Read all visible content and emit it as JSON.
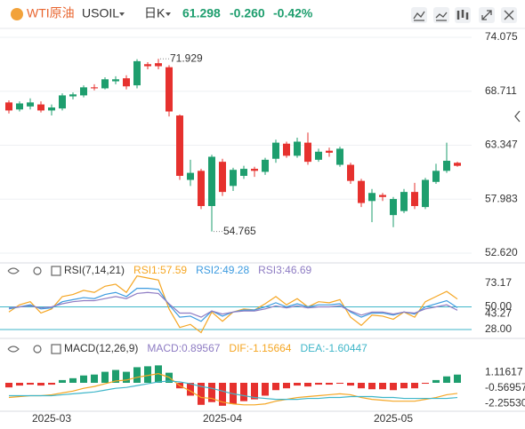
{
  "header": {
    "symbol": "WTI原油",
    "code": "USOIL",
    "period": "日K",
    "price": "61.298",
    "change": "-0.260",
    "change_pct": "-0.42%"
  },
  "chart_data": [
    {
      "type": "candlestick",
      "up_color": "#1e9e6e",
      "down_color": "#e6312e",
      "open": [
        67.6,
        66.9,
        67.2,
        67.4,
        66.8,
        67.0,
        68.2,
        68.3,
        69.1,
        69.0,
        69.7,
        70.0,
        69.3,
        71.4,
        71.5,
        71.1,
        66.3,
        59.9,
        60.8,
        57.3,
        61.7,
        59.3,
        60.3,
        61.0,
        60.7,
        62.0,
        63.5,
        62.3,
        63.6,
        61.9,
        62.8,
        61.4,
        61.4,
        59.8,
        57.8,
        58.4,
        56.4,
        56.8,
        58.7,
        57.2,
        59.7,
        60.8,
        61.6
      ],
      "high": [
        67.8,
        67.7,
        68.0,
        67.7,
        67.4,
        68.5,
        68.6,
        69.3,
        69.4,
        70.1,
        70.2,
        70.3,
        71.9,
        71.6,
        71.929,
        71.3,
        66.4,
        61.9,
        61.0,
        62.4,
        62.0,
        61.1,
        61.3,
        61.2,
        62.1,
        63.9,
        63.7,
        64.1,
        64.6,
        63.0,
        63.1,
        63.2,
        61.6,
        60.0,
        59.0,
        58.6,
        58.2,
        59.0,
        59.6,
        60.1,
        61.5,
        63.6,
        61.7
      ],
      "low": [
        66.5,
        66.7,
        66.9,
        66.6,
        66.3,
        66.8,
        67.9,
        68.1,
        68.8,
        68.9,
        69.4,
        68.9,
        69.0,
        70.9,
        70.9,
        66.2,
        59.9,
        59.3,
        57.0,
        54.765,
        58.3,
        58.8,
        60.0,
        60.2,
        60.4,
        61.6,
        62.1,
        62.1,
        61.4,
        61.7,
        62.2,
        61.2,
        59.5,
        57.2,
        55.7,
        57.8,
        55.2,
        56.6,
        57.0,
        57.0,
        59.5,
        60.6,
        61.2
      ],
      "close": [
        66.8,
        67.5,
        67.6,
        66.8,
        67.1,
        68.3,
        68.4,
        69.1,
        69.0,
        69.9,
        69.9,
        69.2,
        71.7,
        71.2,
        71.2,
        66.7,
        60.3,
        60.6,
        57.3,
        62.2,
        58.7,
        60.9,
        61.0,
        60.8,
        61.9,
        63.6,
        62.3,
        63.7,
        61.7,
        62.7,
        62.6,
        63.0,
        59.8,
        57.6,
        58.6,
        58.2,
        58.0,
        58.7,
        57.3,
        59.9,
        60.8,
        61.8,
        61.3
      ],
      "annotations": [
        71.929,
        54.765
      ],
      "ylim": [
        52.0,
        74.78
      ],
      "yticks": [
        74.075,
        68.711,
        63.347,
        57.983,
        {
          "value": 52.62,
          "label": "52.620"
        }
      ],
      "grid": true
    },
    {
      "type": "line",
      "title": "RSI(7,14,21)",
      "series": [
        {
          "name": "RSI1:57.59",
          "color": "#f5a623",
          "values": [
            45,
            52,
            55,
            44,
            48,
            60,
            62,
            66,
            64,
            70,
            72,
            64,
            80,
            78,
            76,
            48,
            30,
            33,
            25,
            45,
            36,
            45,
            48,
            47,
            53,
            60,
            52,
            58,
            50,
            55,
            54,
            57,
            40,
            32,
            42,
            41,
            38,
            45,
            40,
            55,
            60,
            65,
            57.59
          ]
        },
        {
          "name": "RSI2:49.28",
          "color": "#3d9be0",
          "values": [
            48,
            50,
            52,
            48,
            49,
            55,
            57,
            59,
            58,
            62,
            64,
            60,
            68,
            68,
            67,
            52,
            40,
            41,
            36,
            46,
            41,
            45,
            47,
            47,
            50,
            54,
            50,
            53,
            50,
            52,
            52,
            53,
            45,
            40,
            44,
            44,
            42,
            45,
            43,
            50,
            53,
            56,
            49.28
          ]
        },
        {
          "name": "RSI3:46.69",
          "color": "#8e7cc3",
          "values": [
            49,
            50,
            51,
            49,
            50,
            53,
            55,
            56,
            56,
            58,
            60,
            58,
            63,
            64,
            63,
            53,
            44,
            44,
            40,
            46,
            43,
            45,
            46,
            46,
            48,
            51,
            49,
            51,
            49,
            50,
            50,
            51,
            46,
            42,
            45,
            45,
            43,
            45,
            44,
            48,
            50,
            52,
            46.69
          ]
        }
      ],
      "hlines": [
        50,
        28
      ],
      "hline_color": "#3fb6c9",
      "ylim": [
        22,
        78
      ],
      "yticks": [
        73.17,
        {
          "value": 50,
          "label": "50.00"
        },
        43.27,
        {
          "value": 28,
          "label": "28.00"
        }
      ],
      "grid": false
    },
    {
      "type": "macd",
      "title": "MACD(12,26,9)",
      "up_color": "#1e9e6e",
      "down_color": "#e6312e",
      "categories": [
        null,
        null,
        null,
        null,
        "2025-03",
        null,
        null,
        null,
        null,
        null,
        null,
        null,
        null,
        null,
        null,
        null,
        null,
        null,
        null,
        null,
        "2025-04",
        null,
        null,
        null,
        null,
        null,
        null,
        null,
        null,
        null,
        null,
        null,
        null,
        null,
        null,
        null,
        "2025-05",
        null,
        null,
        null,
        null,
        null,
        null
      ],
      "series": [
        {
          "name": "MACD:0.89567",
          "color": "#8e7cc3",
          "values": [
            -0.5,
            -0.3,
            -0.2,
            -0.3,
            -0.2,
            0.3,
            0.5,
            0.8,
            0.9,
            1.2,
            1.4,
            1.2,
            1.7,
            1.8,
            1.9,
            1.1,
            -0.6,
            -1.4,
            -2.4,
            -2.1,
            -2.5,
            -2.3,
            -2.0,
            -1.8,
            -1.4,
            -0.8,
            -0.6,
            -0.3,
            -0.4,
            -0.2,
            -0.2,
            -0.1,
            -0.3,
            -0.6,
            -0.7,
            -0.7,
            -0.8,
            -0.6,
            -0.6,
            -0.1,
            0.3,
            0.7,
            0.89567
          ]
        },
        {
          "name": "DIF:-1.15664",
          "color": "#f5a623",
          "values": [
            -1.6,
            -1.5,
            -1.4,
            -1.4,
            -1.3,
            -1.1,
            -0.9,
            -0.6,
            -0.4,
            -0.1,
            0.2,
            0.3,
            0.6,
            0.8,
            1.0,
            0.6,
            -0.3,
            -0.9,
            -1.6,
            -1.7,
            -2.1,
            -2.3,
            -2.4,
            -2.4,
            -2.3,
            -2.0,
            -1.8,
            -1.6,
            -1.5,
            -1.4,
            -1.3,
            -1.2,
            -1.3,
            -1.6,
            -1.8,
            -1.9,
            -2.0,
            -2.0,
            -2.0,
            -1.8,
            -1.6,
            -1.3,
            -1.15664
          ]
        },
        {
          "name": "DEA:-1.60447",
          "color": "#3fb6c9",
          "values": [
            -1.4,
            -1.4,
            -1.4,
            -1.4,
            -1.4,
            -1.3,
            -1.2,
            -1.1,
            -1.0,
            -0.8,
            -0.6,
            -0.5,
            -0.3,
            -0.1,
            0.1,
            0.2,
            0.1,
            -0.1,
            -0.4,
            -0.6,
            -0.9,
            -1.2,
            -1.4,
            -1.6,
            -1.7,
            -1.8,
            -1.8,
            -1.8,
            -1.7,
            -1.7,
            -1.6,
            -1.6,
            -1.5,
            -1.5,
            -1.5,
            -1.6,
            -1.6,
            -1.7,
            -1.7,
            -1.7,
            -1.7,
            -1.7,
            -1.60447
          ]
        }
      ],
      "ylim": [
        -3.0,
        3.0
      ],
      "yticks": [
        1.11617,
        -0.56957,
        {
          "value": -2.2553,
          "label": "-2.25530"
        }
      ],
      "grid": false
    }
  ]
}
